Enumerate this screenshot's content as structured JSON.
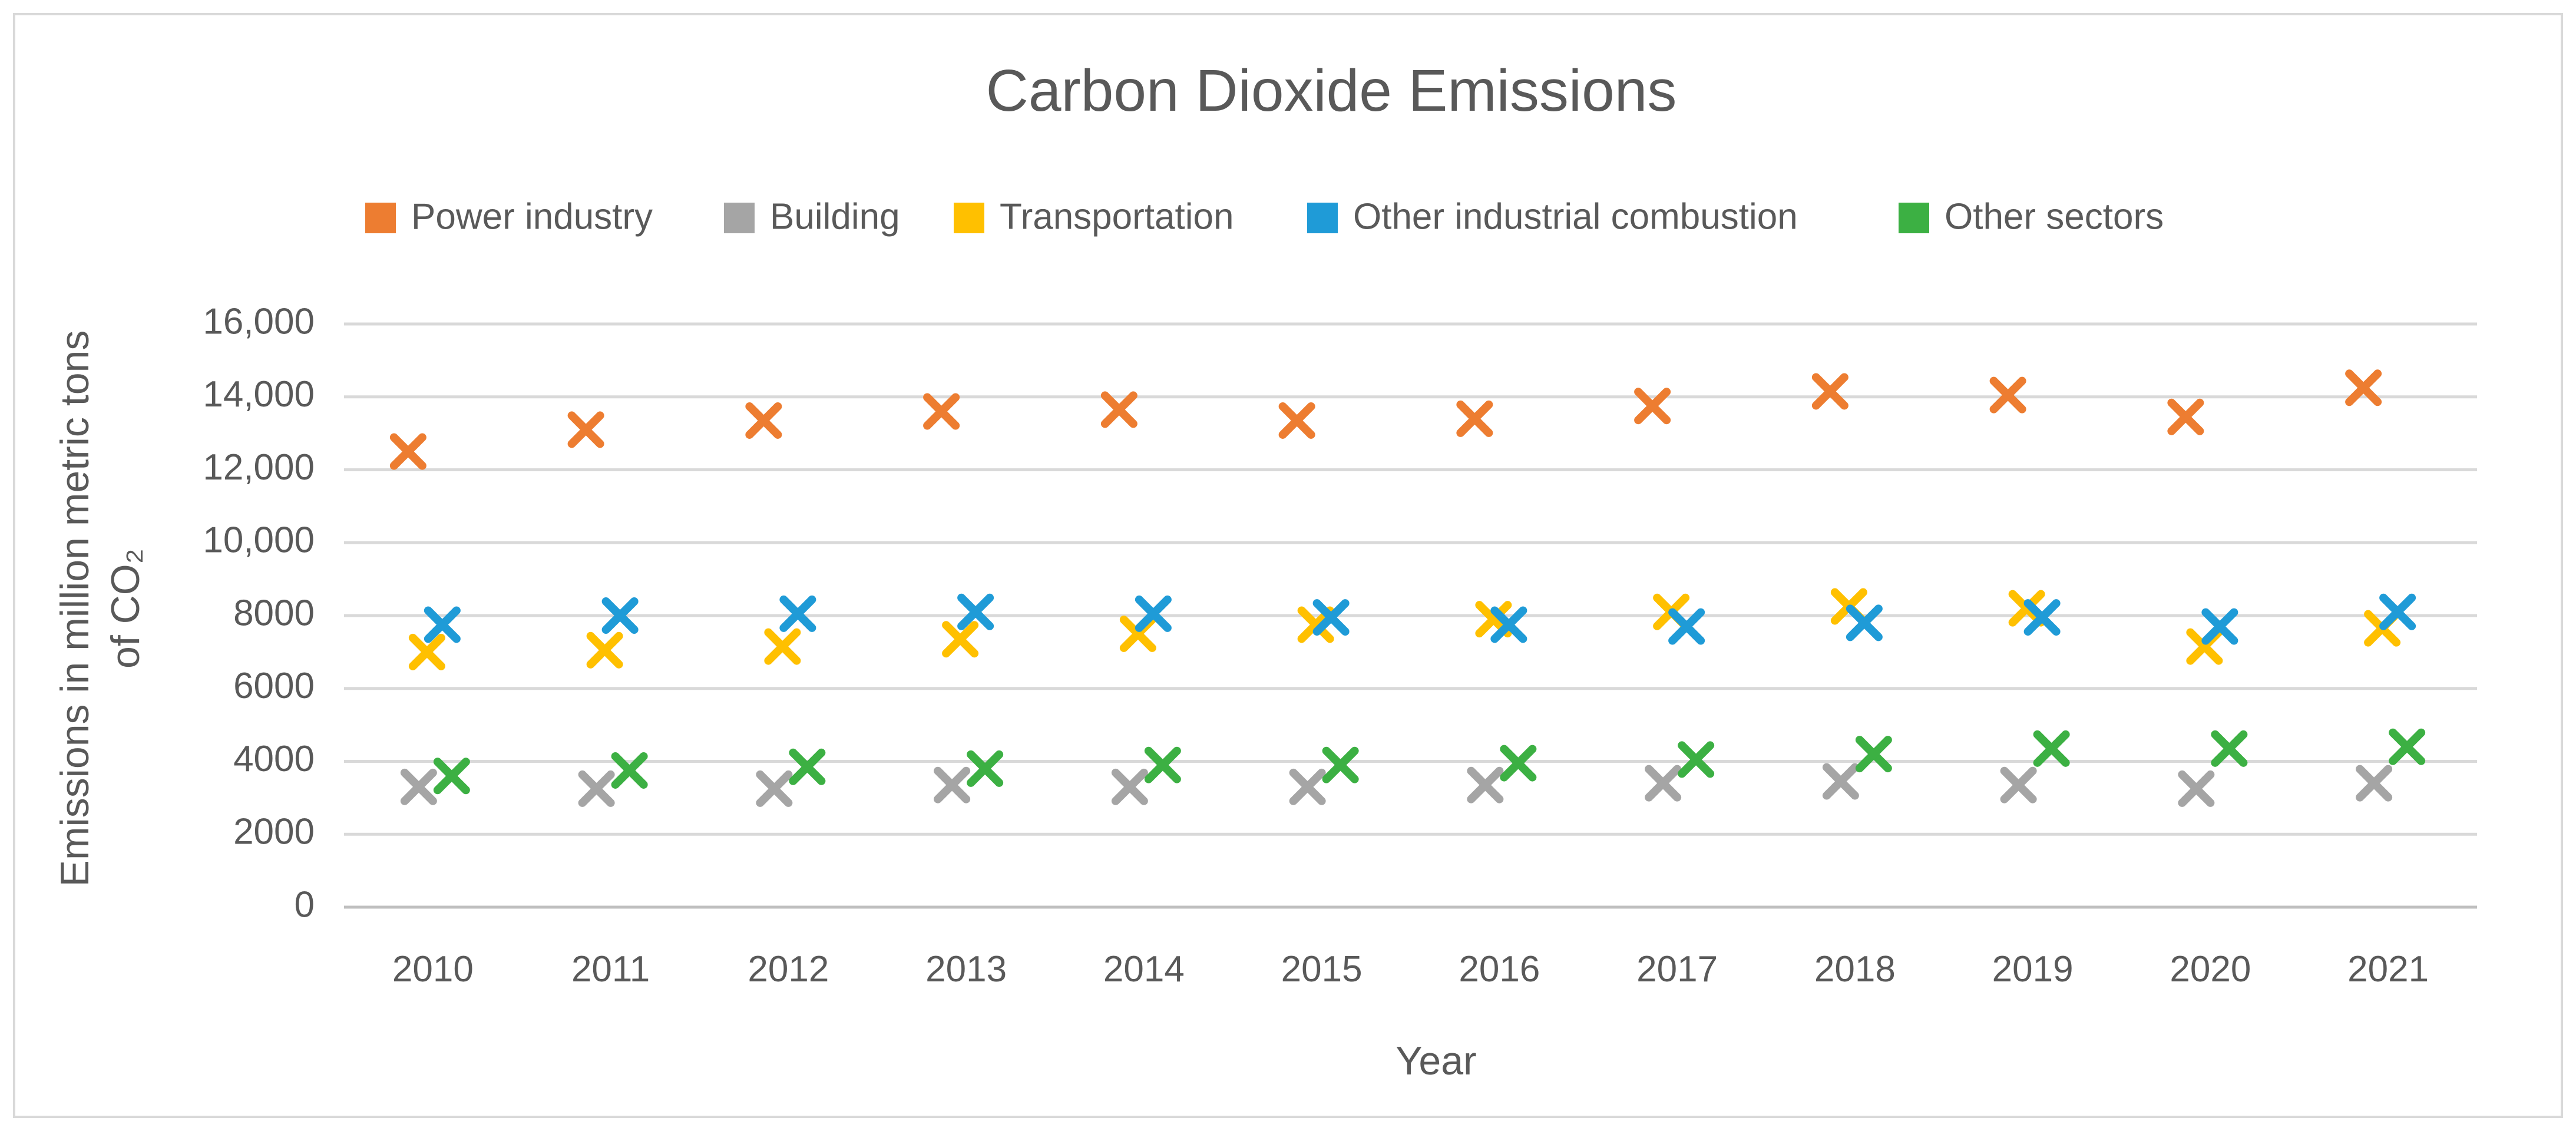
{
  "chart_data": {
    "type": "scatter",
    "title": "Carbon Dioxide Emissions",
    "xlabel": "Year",
    "ylabel_lines": [
      "Emissions in million metric tons",
      "of CO₂"
    ],
    "ylim": [
      0,
      16000
    ],
    "y_ticks": [
      0,
      2000,
      4000,
      6000,
      8000,
      10000,
      12000,
      14000,
      16000
    ],
    "y_tick_labels": [
      "0",
      "2000",
      "4000",
      "6000",
      "8000",
      "10,000",
      "12,000",
      "14,000",
      "16,000"
    ],
    "grid": true,
    "legend_position": "top",
    "marker": "x",
    "categories": [
      "2010",
      "2011",
      "2012",
      "2013",
      "2014",
      "2015",
      "2016",
      "2017",
      "2018",
      "2019",
      "2020",
      "2021"
    ],
    "series": [
      {
        "name": "Power industry",
        "color": "#ed7d31",
        "values": [
          12500,
          13100,
          13350,
          13600,
          13650,
          13350,
          13400,
          13750,
          14150,
          14050,
          13450,
          14250
        ]
      },
      {
        "name": "Building",
        "color": "#a5a5a5",
        "values": [
          3300,
          3250,
          3250,
          3350,
          3300,
          3300,
          3350,
          3400,
          3450,
          3350,
          3250,
          3400
        ]
      },
      {
        "name": "Transportation",
        "color": "#ffc000",
        "values": [
          7000,
          7050,
          7150,
          7350,
          7500,
          7750,
          7900,
          8100,
          8250,
          8200,
          7150,
          7650
        ]
      },
      {
        "name": "Other industrial combustion",
        "color": "#1f9bd7",
        "values": [
          7750,
          8000,
          8050,
          8100,
          8050,
          7950,
          7750,
          7700,
          7800,
          7950,
          7700,
          8100
        ]
      },
      {
        "name": "Other sectors",
        "color": "#3cb043",
        "values": [
          3600,
          3750,
          3850,
          3800,
          3900,
          3900,
          3950,
          4050,
          4200,
          4350,
          4350,
          4400
        ]
      }
    ]
  }
}
